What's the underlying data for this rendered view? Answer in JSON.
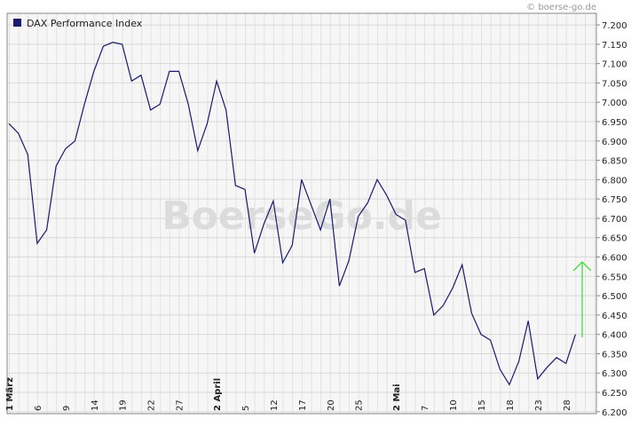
{
  "chart_data": {
    "type": "line",
    "copyright": "© boerse-go.de",
    "watermark": "BoerseGo.de",
    "categories": [
      "1 März",
      null,
      null,
      "6",
      null,
      null,
      "9",
      null,
      null,
      "14",
      null,
      null,
      "19",
      null,
      null,
      "22",
      null,
      null,
      "27",
      null,
      null,
      null,
      "2 April",
      null,
      null,
      "5",
      null,
      null,
      "12",
      null,
      null,
      "17",
      null,
      null,
      "20",
      null,
      null,
      "25",
      null,
      null,
      null,
      "2 Mai",
      null,
      null,
      "7",
      null,
      null,
      "10",
      null,
      null,
      "15",
      null,
      null,
      "18",
      null,
      null,
      "23",
      null,
      null,
      "28",
      null
    ],
    "series": [
      {
        "name": "DAX Performance Index",
        "color": "#1a1a6e",
        "values": [
          6945,
          6920,
          6865,
          6635,
          6670,
          6835,
          6880,
          6900,
          6995,
          7080,
          7145,
          7155,
          7150,
          7055,
          7070,
          6980,
          6995,
          7080,
          7080,
          6995,
          6875,
          6945,
          7055,
          6980,
          6785,
          6775,
          6610,
          6685,
          6745,
          6585,
          6630,
          6800,
          6735,
          6670,
          6750,
          6525,
          6590,
          6705,
          6740,
          6800,
          6760,
          6710,
          6695,
          6560,
          6570,
          6450,
          6475,
          6520,
          6580,
          6455,
          6400,
          6385,
          6310,
          6270,
          6330,
          6435,
          6285,
          6315,
          6340,
          6325,
          6400
        ]
      }
    ],
    "ylim": [
      6195,
      7230
    ],
    "yticks": [
      {
        "value": 6200,
        "label": "6.200"
      },
      {
        "value": 6250,
        "label": "6.250"
      },
      {
        "value": 6300,
        "label": "6.300"
      },
      {
        "value": 6350,
        "label": "6.350"
      },
      {
        "value": 6400,
        "label": "6.400"
      },
      {
        "value": 6450,
        "label": "6.450"
      },
      {
        "value": 6500,
        "label": "6.500"
      },
      {
        "value": 6550,
        "label": "6.550"
      },
      {
        "value": 6600,
        "label": "6.600"
      },
      {
        "value": 6650,
        "label": "6.650"
      },
      {
        "value": 6700,
        "label": "6.700"
      },
      {
        "value": 6750,
        "label": "6.750"
      },
      {
        "value": 6800,
        "label": "6.800"
      },
      {
        "value": 6850,
        "label": "6.850"
      },
      {
        "value": 6900,
        "label": "6.900"
      },
      {
        "value": 6950,
        "label": "6.950"
      },
      {
        "value": 7000,
        "label": "7.000"
      },
      {
        "value": 7050,
        "label": "7.050"
      },
      {
        "value": 7100,
        "label": "7.100"
      },
      {
        "value": 7150,
        "label": "7.150"
      },
      {
        "value": 7200,
        "label": "7.200"
      }
    ],
    "grid": true,
    "legend": "top-left"
  }
}
